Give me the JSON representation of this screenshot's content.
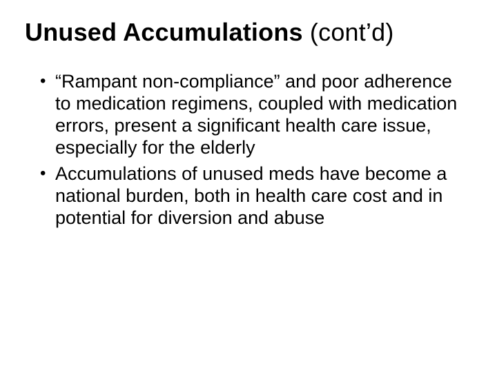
{
  "slide": {
    "background_color": "#ffffff",
    "text_color": "#000000",
    "font_family": "Arial",
    "title": {
      "bold_part": "Unused Accumulations",
      "regular_part": " (cont’d)",
      "fontsize": 36
    },
    "bullets": {
      "fontsize": 27,
      "items": [
        "“Rampant non-compliance” and poor adherence to medication regimens, coupled with medication errors, present a significant health care issue, especially for the elderly",
        "Accumulations of unused meds have become a national burden, both in health care cost and in potential for diversion and abuse"
      ]
    }
  }
}
